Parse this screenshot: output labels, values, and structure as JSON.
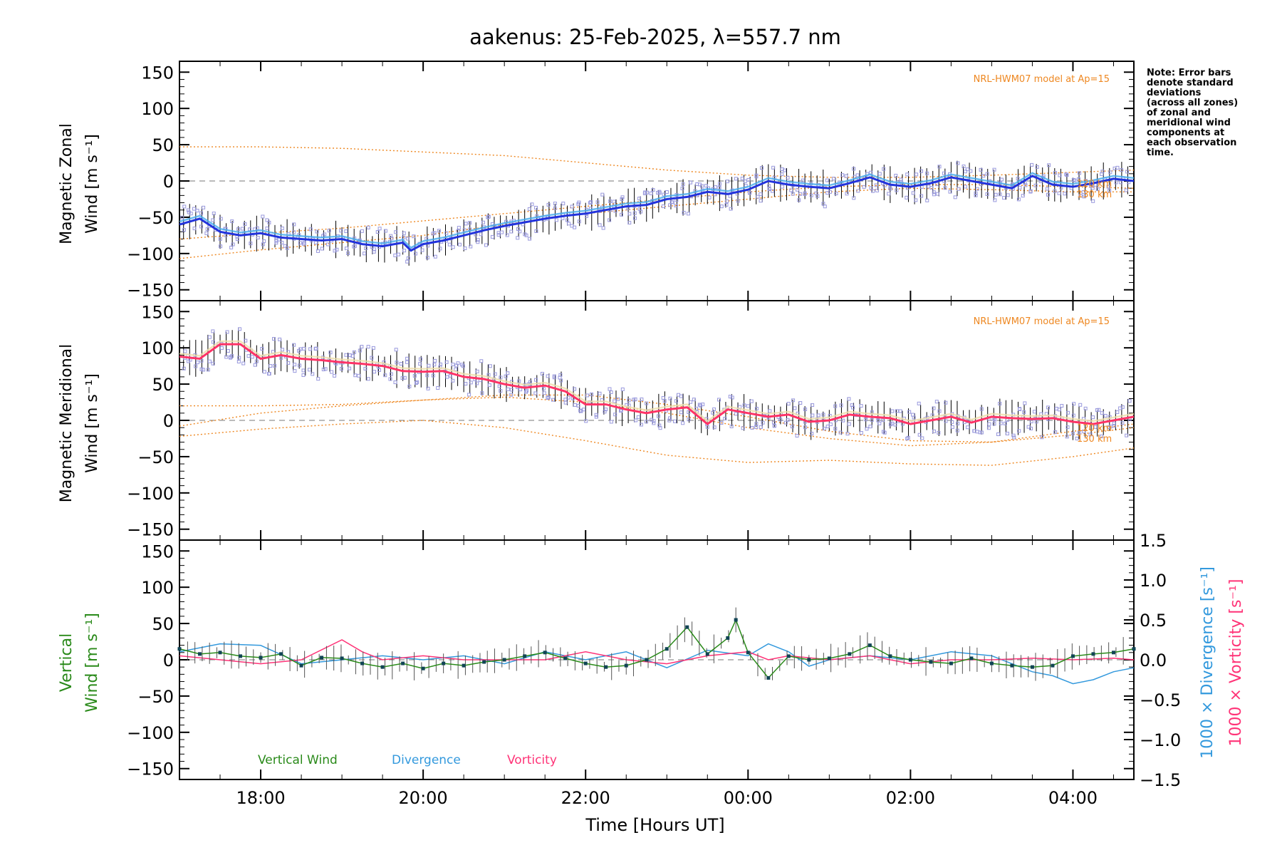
{
  "chart_data": [
    {
      "type": "line",
      "panel": "zonal",
      "title": "aakenus: 25-Feb-2025, λ=557.7 nm",
      "ylabel_line1": "Magnetic Zonal",
      "ylabel_line2": "Wind [m s⁻¹]",
      "ylim": [
        -165,
        165
      ],
      "yticks": [
        150,
        100,
        50,
        0,
        -50,
        -100,
        -150
      ],
      "xlim": [
        17.0,
        28.75
      ],
      "model_label": "NRL-HWM07 model at Ap=15",
      "model_alt_labels": [
        "120 km",
        "130 km"
      ],
      "colors": {
        "mean": "#2233dd",
        "envelope": "#44aaee",
        "scatter": "#9999dd",
        "model": "#ee8822"
      },
      "series": [
        {
          "name": "Mean zonal wind",
          "x": [
            17.0,
            17.25,
            17.5,
            17.75,
            18.0,
            18.25,
            18.5,
            18.75,
            19.0,
            19.25,
            19.5,
            19.75,
            19.85,
            20.0,
            20.25,
            20.5,
            20.75,
            21.0,
            21.25,
            21.5,
            21.75,
            22.0,
            22.25,
            22.5,
            22.75,
            23.0,
            23.25,
            23.5,
            23.75,
            24.0,
            24.25,
            24.5,
            24.75,
            25.0,
            25.25,
            25.5,
            25.75,
            26.0,
            26.25,
            26.5,
            26.75,
            27.0,
            27.25,
            27.5,
            27.75,
            28.0,
            28.25,
            28.5,
            28.75
          ],
          "values": [
            -60,
            -52,
            -70,
            -75,
            -72,
            -78,
            -80,
            -82,
            -80,
            -87,
            -90,
            -85,
            -96,
            -87,
            -82,
            -75,
            -68,
            -62,
            -57,
            -52,
            -48,
            -45,
            -40,
            -35,
            -33,
            -25,
            -22,
            -15,
            -18,
            -12,
            0,
            -5,
            -8,
            -10,
            -3,
            5,
            -5,
            -8,
            -3,
            5,
            0,
            -5,
            -10,
            7,
            -5,
            -8,
            -3,
            3,
            0
          ]
        }
      ],
      "model_curves": [
        {
          "x": [
            17.0,
            18.0,
            19.0,
            20.0,
            21.0,
            22.0,
            23.0,
            24.0,
            25.0,
            26.0,
            27.0,
            28.0,
            28.75
          ],
          "values": [
            47,
            47,
            45,
            40,
            35,
            25,
            15,
            8,
            5,
            5,
            8,
            12,
            15
          ]
        },
        {
          "x": [
            17.0,
            18.0,
            19.0,
            20.0,
            21.0,
            22.0,
            23.0,
            24.0,
            25.0,
            26.0,
            27.0,
            28.0,
            28.75
          ],
          "values": [
            -80,
            -72,
            -65,
            -55,
            -45,
            -35,
            -25,
            -15,
            -8,
            -5,
            -5,
            -8,
            -10
          ]
        },
        {
          "x": [
            17.0,
            18.0,
            19.0,
            20.0,
            21.0,
            22.0,
            23.0,
            24.0,
            25.0,
            26.0,
            27.0,
            28.0,
            28.75
          ],
          "values": [
            -107,
            -95,
            -85,
            -75,
            -60,
            -45,
            -35,
            -25,
            -15,
            -10,
            -12,
            -15,
            -15
          ]
        }
      ]
    },
    {
      "type": "line",
      "panel": "meridional",
      "ylabel_line1": "Magnetic Meridional",
      "ylabel_line2": "Wind [m s⁻¹]",
      "ylim": [
        -165,
        165
      ],
      "yticks": [
        150,
        100,
        50,
        0,
        -50,
        -100,
        -150
      ],
      "xlim": [
        17.0,
        28.75
      ],
      "model_label": "NRL-HWM07 model at Ap=15",
      "model_alt_labels": [
        "120 km",
        "130 km"
      ],
      "colors": {
        "mean": "#ff3366",
        "envelope": "#eeddaa",
        "scatter": "#9999dd",
        "model": "#ee8822"
      },
      "series": [
        {
          "name": "Mean meridional wind",
          "x": [
            17.0,
            17.25,
            17.5,
            17.75,
            18.0,
            18.25,
            18.5,
            18.75,
            19.0,
            19.25,
            19.5,
            19.75,
            20.0,
            20.25,
            20.5,
            20.75,
            21.0,
            21.25,
            21.5,
            21.75,
            22.0,
            22.25,
            22.5,
            22.75,
            23.0,
            23.25,
            23.5,
            23.75,
            24.0,
            24.25,
            24.5,
            24.75,
            25.0,
            25.25,
            25.5,
            25.75,
            26.0,
            26.25,
            26.5,
            26.75,
            27.0,
            27.25,
            27.5,
            27.75,
            28.0,
            28.25,
            28.5,
            28.75
          ],
          "values": [
            88,
            85,
            105,
            105,
            85,
            90,
            85,
            83,
            80,
            78,
            75,
            68,
            67,
            68,
            60,
            57,
            50,
            45,
            48,
            40,
            22,
            22,
            15,
            10,
            15,
            18,
            -5,
            15,
            10,
            5,
            8,
            -2,
            0,
            8,
            5,
            3,
            -5,
            0,
            5,
            -3,
            5,
            3,
            2,
            3,
            -2,
            -5,
            0,
            5
          ]
        }
      ],
      "model_curves": [
        {
          "x": [
            17.0,
            18.0,
            19.0,
            20.0,
            21.0,
            22.0,
            23.0,
            24.0,
            25.0,
            26.0,
            27.0,
            28.0,
            28.75
          ],
          "values": [
            20,
            20,
            22,
            28,
            35,
            35,
            22,
            5,
            -15,
            -28,
            -30,
            -20,
            -10
          ]
        },
        {
          "x": [
            17.0,
            18.0,
            19.0,
            20.0,
            21.0,
            22.0,
            23.0,
            24.0,
            25.0,
            26.0,
            27.0,
            28.0,
            28.75
          ],
          "values": [
            -8,
            10,
            20,
            28,
            32,
            25,
            10,
            -10,
            -25,
            -35,
            -30,
            -15,
            -5
          ]
        },
        {
          "x": [
            17.0,
            18.0,
            19.0,
            20.0,
            21.0,
            22.0,
            23.0,
            24.0,
            25.0,
            26.0,
            27.0,
            28.0,
            28.75
          ],
          "values": [
            -22,
            -12,
            -5,
            0,
            -10,
            -28,
            -48,
            -58,
            -55,
            -60,
            -62,
            -50,
            -38
          ]
        }
      ]
    },
    {
      "type": "line",
      "panel": "vertical",
      "xlabel": "Time [Hours UT]",
      "xticks": [
        "18:00",
        "20:00",
        "22:00",
        "00:00",
        "02:00",
        "04:00"
      ],
      "xtick_values": [
        18,
        20,
        22,
        24,
        26,
        28
      ],
      "xlim": [
        17.0,
        28.75
      ],
      "ylabel_left_line1": "Vertical",
      "ylabel_left_line2": "Wind [m s⁻¹]",
      "ylim": [
        -165,
        165
      ],
      "yticks": [
        150,
        100,
        50,
        0,
        -50,
        -100,
        -150
      ],
      "right_axis_labels": [
        "1000 × Divergence [s⁻¹]",
        "1000 × Vorticity [s⁻¹]"
      ],
      "ylim_right": [
        -1.5,
        1.5
      ],
      "yticks_right": [
        "1.5",
        "1.0",
        "0.5",
        "0.0",
        "−0.5",
        "−1.0",
        "−1.5"
      ],
      "legend": [
        "Vertical Wind",
        "Divergence",
        "Vorticity"
      ],
      "colors": {
        "vertical": "#2a8a1a",
        "divergence": "#3399dd",
        "vorticity": "#ff3377",
        "points": "#114455"
      },
      "series": [
        {
          "name": "Vertical Wind",
          "x": [
            17.0,
            17.25,
            17.5,
            17.75,
            18.0,
            18.25,
            18.5,
            18.75,
            19.0,
            19.25,
            19.5,
            19.75,
            20.0,
            20.25,
            20.5,
            20.75,
            21.0,
            21.25,
            21.5,
            21.75,
            22.0,
            22.25,
            22.5,
            22.75,
            23.0,
            23.25,
            23.5,
            23.75,
            23.85,
            24.0,
            24.25,
            24.5,
            24.75,
            25.0,
            25.25,
            25.5,
            25.75,
            26.0,
            26.25,
            26.5,
            26.75,
            27.0,
            27.25,
            27.5,
            27.75,
            28.0,
            28.25,
            28.5,
            28.75
          ],
          "values": [
            15,
            8,
            10,
            5,
            3,
            8,
            -8,
            3,
            2,
            -5,
            -10,
            -5,
            -12,
            -5,
            -8,
            -3,
            0,
            5,
            10,
            2,
            -5,
            -10,
            -8,
            0,
            15,
            45,
            8,
            30,
            55,
            10,
            -25,
            5,
            0,
            2,
            8,
            20,
            5,
            0,
            -3,
            -5,
            2,
            -5,
            -8,
            -10,
            -8,
            5,
            8,
            10,
            15
          ]
        },
        {
          "name": "Divergence",
          "x": [
            17.0,
            17.5,
            18.0,
            18.5,
            19.0,
            19.5,
            20.0,
            20.5,
            21.0,
            21.5,
            22.0,
            22.5,
            23.0,
            23.5,
            24.0,
            24.25,
            24.5,
            24.75,
            25.0,
            25.5,
            26.0,
            26.5,
            27.0,
            27.5,
            27.75,
            28.0,
            28.25,
            28.5,
            28.75
          ],
          "values": [
            0.1,
            0.2,
            0.18,
            -0.05,
            0.0,
            0.05,
            0.0,
            0.05,
            -0.05,
            0.1,
            0.0,
            0.1,
            -0.1,
            0.12,
            0.05,
            0.2,
            0.1,
            -0.08,
            0.0,
            0.05,
            0.0,
            0.1,
            0.05,
            -0.15,
            -0.2,
            -0.3,
            -0.25,
            -0.15,
            -0.1
          ]
        },
        {
          "name": "Vorticity",
          "x": [
            17.0,
            17.5,
            18.0,
            18.5,
            19.0,
            19.25,
            19.5,
            20.0,
            20.5,
            21.0,
            21.5,
            22.0,
            22.5,
            23.0,
            23.5,
            24.0,
            24.25,
            24.5,
            25.0,
            25.5,
            26.0,
            26.5,
            27.0,
            27.5,
            28.0,
            28.5,
            28.75
          ],
          "values": [
            0.05,
            0.0,
            -0.05,
            0.0,
            0.25,
            0.1,
            0.0,
            0.05,
            0.0,
            0.0,
            0.0,
            0.1,
            0.0,
            -0.05,
            0.05,
            0.1,
            0.0,
            0.05,
            0.0,
            0.05,
            -0.05,
            0.0,
            0.0,
            0.02,
            0.0,
            0.02,
            0.0
          ]
        }
      ]
    }
  ],
  "note": {
    "lines": [
      "Note: Error bars",
      "denote standard",
      "deviations",
      "(across all zones)",
      "of zonal and",
      "meridional wind",
      "components at",
      "each observation",
      "time."
    ]
  }
}
